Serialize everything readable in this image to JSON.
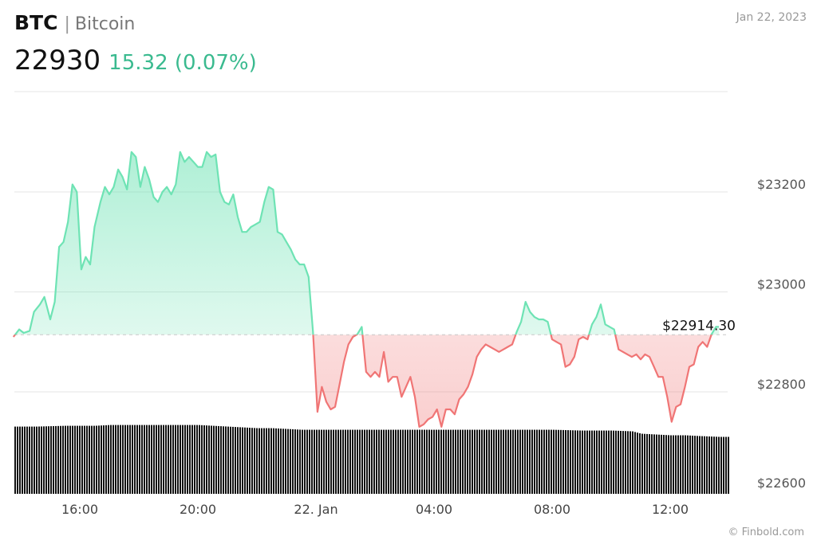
{
  "header": {
    "symbol": "BTC",
    "separator": "|",
    "name": "Bitcoin",
    "price": "22930",
    "change": "15.32 (0.07%)"
  },
  "date": "Jan 22, 2023",
  "credit": "© Finbold.com",
  "colors": {
    "up": "#6ee3b4",
    "down": "#f07575",
    "change_text": "#3aba8f",
    "volume": "#111111",
    "grid": "#e4e4e4"
  },
  "chart_data": {
    "type": "area",
    "baseline": 22914.3,
    "baseline_label": "$22914.30",
    "ylim": [
      22600,
      23400
    ],
    "y_ticks": [
      {
        "value": 23200,
        "label": "$23200"
      },
      {
        "value": 23000,
        "label": "$23000"
      },
      {
        "value": 22800,
        "label": "$22800"
      },
      {
        "value": 22600,
        "label": "$22600"
      }
    ],
    "x_start_hour": 13.75,
    "x_end_hour": 36.0,
    "x_ticks": [
      {
        "hour": 16,
        "label": "16:00"
      },
      {
        "hour": 20,
        "label": "20:00"
      },
      {
        "hour": 24,
        "label": "22. Jan"
      },
      {
        "hour": 28,
        "label": "04:00"
      },
      {
        "hour": 32,
        "label": "08:00"
      },
      {
        "hour": 36,
        "label": "12:00"
      }
    ],
    "x_end_hour_plot": 37.65,
    "price_series": [
      [
        13.75,
        22910
      ],
      [
        13.95,
        22925
      ],
      [
        14.1,
        22918
      ],
      [
        14.3,
        22922
      ],
      [
        14.45,
        22960
      ],
      [
        14.65,
        22975
      ],
      [
        14.8,
        22990
      ],
      [
        15.0,
        22945
      ],
      [
        15.15,
        22980
      ],
      [
        15.3,
        23090
      ],
      [
        15.45,
        23100
      ],
      [
        15.6,
        23140
      ],
      [
        15.75,
        23215
      ],
      [
        15.9,
        23200
      ],
      [
        16.05,
        23045
      ],
      [
        16.2,
        23070
      ],
      [
        16.35,
        23055
      ],
      [
        16.5,
        23130
      ],
      [
        16.7,
        23180
      ],
      [
        16.85,
        23210
      ],
      [
        17.0,
        23195
      ],
      [
        17.15,
        23210
      ],
      [
        17.3,
        23245
      ],
      [
        17.45,
        23230
      ],
      [
        17.6,
        23205
      ],
      [
        17.75,
        23280
      ],
      [
        17.9,
        23270
      ],
      [
        18.05,
        23210
      ],
      [
        18.2,
        23250
      ],
      [
        18.35,
        23225
      ],
      [
        18.5,
        23190
      ],
      [
        18.65,
        23180
      ],
      [
        18.8,
        23200
      ],
      [
        18.95,
        23210
      ],
      [
        19.1,
        23195
      ],
      [
        19.25,
        23215
      ],
      [
        19.4,
        23280
      ],
      [
        19.55,
        23260
      ],
      [
        19.7,
        23270
      ],
      [
        19.85,
        23260
      ],
      [
        20.0,
        23250
      ],
      [
        20.15,
        23250
      ],
      [
        20.3,
        23280
      ],
      [
        20.45,
        23270
      ],
      [
        20.6,
        23275
      ],
      [
        20.75,
        23200
      ],
      [
        20.9,
        23180
      ],
      [
        21.05,
        23175
      ],
      [
        21.2,
        23195
      ],
      [
        21.35,
        23150
      ],
      [
        21.5,
        23120
      ],
      [
        21.65,
        23120
      ],
      [
        21.8,
        23130
      ],
      [
        21.95,
        23135
      ],
      [
        22.1,
        23140
      ],
      [
        22.25,
        23180
      ],
      [
        22.4,
        23210
      ],
      [
        22.55,
        23205
      ],
      [
        22.7,
        23120
      ],
      [
        22.85,
        23115
      ],
      [
        23.0,
        23100
      ],
      [
        23.15,
        23085
      ],
      [
        23.3,
        23065
      ],
      [
        23.45,
        23055
      ],
      [
        23.6,
        23055
      ],
      [
        23.75,
        23030
      ],
      [
        23.9,
        22920
      ],
      [
        24.05,
        22760
      ],
      [
        24.2,
        22810
      ],
      [
        24.35,
        22780
      ],
      [
        24.5,
        22765
      ],
      [
        24.65,
        22770
      ],
      [
        24.8,
        22815
      ],
      [
        24.95,
        22860
      ],
      [
        25.1,
        22895
      ],
      [
        25.25,
        22910
      ],
      [
        25.4,
        22915
      ],
      [
        25.55,
        22930
      ],
      [
        25.7,
        22840
      ],
      [
        25.85,
        22830
      ],
      [
        26.0,
        22840
      ],
      [
        26.15,
        22830
      ],
      [
        26.3,
        22880
      ],
      [
        26.45,
        22820
      ],
      [
        26.6,
        22830
      ],
      [
        26.75,
        22830
      ],
      [
        26.9,
        22790
      ],
      [
        27.05,
        22810
      ],
      [
        27.2,
        22830
      ],
      [
        27.35,
        22790
      ],
      [
        27.5,
        22730
      ],
      [
        27.65,
        22735
      ],
      [
        27.8,
        22745
      ],
      [
        27.95,
        22750
      ],
      [
        28.1,
        22765
      ],
      [
        28.25,
        22730
      ],
      [
        28.4,
        22765
      ],
      [
        28.55,
        22765
      ],
      [
        28.7,
        22755
      ],
      [
        28.85,
        22785
      ],
      [
        29.0,
        22795
      ],
      [
        29.15,
        22810
      ],
      [
        29.3,
        22835
      ],
      [
        29.45,
        22870
      ],
      [
        29.6,
        22885
      ],
      [
        29.75,
        22895
      ],
      [
        29.9,
        22890
      ],
      [
        30.05,
        22885
      ],
      [
        30.2,
        22880
      ],
      [
        30.35,
        22885
      ],
      [
        30.5,
        22890
      ],
      [
        30.65,
        22895
      ],
      [
        30.8,
        22920
      ],
      [
        30.95,
        22940
      ],
      [
        31.1,
        22980
      ],
      [
        31.25,
        22960
      ],
      [
        31.4,
        22950
      ],
      [
        31.55,
        22945
      ],
      [
        31.7,
        22945
      ],
      [
        31.85,
        22940
      ],
      [
        32.0,
        22905
      ],
      [
        32.15,
        22900
      ],
      [
        32.3,
        22895
      ],
      [
        32.45,
        22850
      ],
      [
        32.6,
        22855
      ],
      [
        32.75,
        22870
      ],
      [
        32.9,
        22905
      ],
      [
        33.05,
        22910
      ],
      [
        33.2,
        22905
      ],
      [
        33.35,
        22935
      ],
      [
        33.5,
        22950
      ],
      [
        33.65,
        22975
      ],
      [
        33.8,
        22935
      ],
      [
        33.95,
        22930
      ],
      [
        34.1,
        22925
      ],
      [
        34.25,
        22885
      ],
      [
        34.4,
        22880
      ],
      [
        34.55,
        22875
      ],
      [
        34.7,
        22870
      ],
      [
        34.85,
        22875
      ],
      [
        35.0,
        22865
      ],
      [
        35.15,
        22875
      ],
      [
        35.3,
        22870
      ],
      [
        35.45,
        22850
      ],
      [
        35.6,
        22830
      ],
      [
        35.75,
        22830
      ],
      [
        35.9,
        22790
      ],
      [
        36.05,
        22740
      ],
      [
        36.2,
        22770
      ],
      [
        36.35,
        22775
      ],
      [
        36.5,
        22810
      ],
      [
        36.65,
        22850
      ],
      [
        36.8,
        22855
      ],
      [
        36.95,
        22890
      ],
      [
        37.1,
        22900
      ],
      [
        37.25,
        22890
      ],
      [
        37.4,
        22915
      ],
      [
        37.55,
        22930
      ],
      [
        37.65,
        22930
      ]
    ],
    "volume_series": [
      [
        13.75,
        0.85
      ],
      [
        14.5,
        0.85
      ],
      [
        15.5,
        0.86
      ],
      [
        16.5,
        0.86
      ],
      [
        17.0,
        0.87
      ],
      [
        18.0,
        0.87
      ],
      [
        19.0,
        0.87
      ],
      [
        20.0,
        0.87
      ],
      [
        20.5,
        0.86
      ],
      [
        21.0,
        0.85
      ],
      [
        21.5,
        0.84
      ],
      [
        22.0,
        0.83
      ],
      [
        22.5,
        0.83
      ],
      [
        23.0,
        0.82
      ],
      [
        23.5,
        0.81
      ],
      [
        24.0,
        0.81
      ],
      [
        25.0,
        0.81
      ],
      [
        26.0,
        0.81
      ],
      [
        27.0,
        0.81
      ],
      [
        28.0,
        0.81
      ],
      [
        29.0,
        0.81
      ],
      [
        30.0,
        0.81
      ],
      [
        31.0,
        0.81
      ],
      [
        32.0,
        0.81
      ],
      [
        33.0,
        0.8
      ],
      [
        34.0,
        0.8
      ],
      [
        34.7,
        0.79
      ],
      [
        35.0,
        0.76
      ],
      [
        35.5,
        0.75
      ],
      [
        36.0,
        0.74
      ],
      [
        36.5,
        0.74
      ],
      [
        37.0,
        0.73
      ],
      [
        37.65,
        0.72
      ]
    ]
  }
}
